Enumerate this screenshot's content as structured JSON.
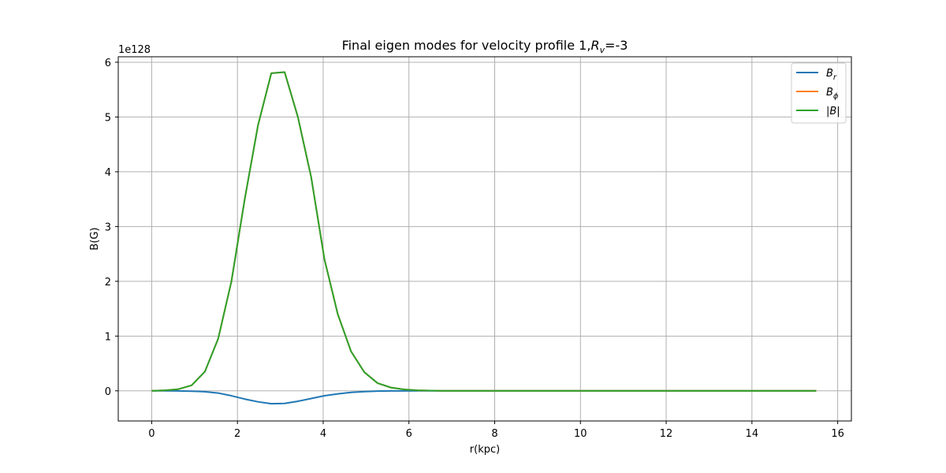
{
  "chart_data": {
    "type": "line",
    "title_prefix": "Final eigen modes for velocity profile 1,",
    "title_var": "R",
    "title_sub": "v",
    "title_suffix": "=-3",
    "xlabel": "r(kpc)",
    "ylabel": "B(G)",
    "y_offset_label": "1e128",
    "xlim": [
      -0.78,
      16.32
    ],
    "ylim": [
      -0.55,
      6.1
    ],
    "xticks": [
      0,
      2,
      4,
      6,
      8,
      10,
      12,
      14,
      16
    ],
    "yticks": [
      0,
      1,
      2,
      3,
      4,
      5,
      6
    ],
    "grid": true,
    "legend_position": "upper-right",
    "x": [
      0.0,
      0.31,
      0.62,
      0.93,
      1.24,
      1.55,
      1.86,
      2.17,
      2.48,
      2.79,
      3.1,
      3.41,
      3.72,
      4.03,
      4.34,
      4.65,
      4.96,
      5.27,
      5.58,
      5.89,
      6.2,
      6.51,
      6.82,
      7.13,
      7.44,
      8.0,
      9.0,
      10.0,
      11.0,
      12.0,
      13.0,
      14.0,
      15.0,
      15.5
    ],
    "series": [
      {
        "name_var": "B",
        "name_sub": "r",
        "color": "#1f77b4",
        "values": [
          0.0,
          0.0,
          -0.002,
          -0.006,
          -0.015,
          -0.04,
          -0.09,
          -0.15,
          -0.2,
          -0.235,
          -0.23,
          -0.19,
          -0.14,
          -0.09,
          -0.055,
          -0.028,
          -0.013,
          -0.005,
          -0.002,
          -0.001,
          0.0,
          0.0,
          0.0,
          0.0,
          0.0,
          0.0,
          0.0,
          0.0,
          0.0,
          0.0,
          0.0,
          0.0,
          0.0,
          0.0
        ]
      },
      {
        "name_var": "B",
        "name_sub": "ϕ",
        "color": "#ff7f0e",
        "values": [
          0.0,
          0.01,
          0.03,
          0.1,
          0.35,
          0.95,
          2.0,
          3.5,
          4.85,
          5.8,
          5.82,
          5.0,
          3.9,
          2.4,
          1.4,
          0.72,
          0.34,
          0.14,
          0.06,
          0.025,
          0.01,
          0.004,
          0.0015,
          0.0005,
          0.0002,
          0.0,
          0.0,
          0.0,
          0.0,
          0.0,
          0.0,
          0.0,
          0.0,
          0.0
        ]
      },
      {
        "name_var": "|B|",
        "name_sub": "",
        "color": "#2ca02c",
        "values": [
          0.0,
          0.01,
          0.03,
          0.1,
          0.35,
          0.95,
          2.0,
          3.5,
          4.85,
          5.8,
          5.82,
          5.0,
          3.9,
          2.4,
          1.4,
          0.72,
          0.34,
          0.14,
          0.06,
          0.025,
          0.01,
          0.004,
          0.0015,
          0.0005,
          0.0002,
          0.0,
          0.0,
          0.0,
          0.0,
          0.0,
          0.0,
          0.0,
          0.0,
          0.0
        ]
      }
    ]
  }
}
